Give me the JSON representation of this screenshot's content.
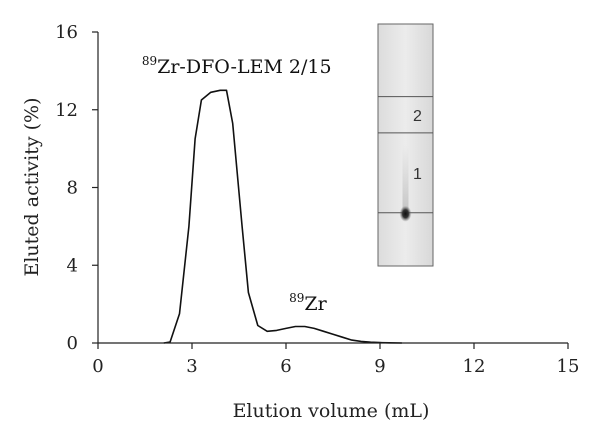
{
  "chart_data": {
    "type": "line",
    "xlabel": "Elution volume (mL)",
    "ylabel": "Eluted activity (%)",
    "xlim": [
      0,
      15
    ],
    "ylim": [
      0,
      16
    ],
    "x_ticks": [
      0,
      3,
      6,
      9,
      12,
      15
    ],
    "y_ticks": [
      0,
      4,
      8,
      12,
      16
    ],
    "grid": false,
    "series": [
      {
        "x": [
          2.1,
          2.3,
          2.6,
          2.9,
          3.1,
          3.3,
          3.6,
          3.9,
          4.1,
          4.3,
          4.6,
          4.8,
          5.1,
          5.4,
          5.7,
          6.0,
          6.3,
          6.6,
          6.9,
          7.2,
          7.5,
          7.8,
          8.1,
          8.4,
          8.7,
          9.0,
          9.3,
          9.7
        ],
        "y": [
          0.0,
          0.05,
          1.5,
          6.0,
          10.5,
          12.5,
          12.9,
          13.0,
          13.0,
          11.3,
          6.0,
          2.6,
          0.9,
          0.6,
          0.65,
          0.75,
          0.85,
          0.85,
          0.75,
          0.6,
          0.45,
          0.3,
          0.15,
          0.08,
          0.04,
          0.02,
          0.01,
          0.0
        ]
      }
    ],
    "annotations": [
      {
        "sup": "89",
        "text": "Zr-DFO-LEM 2/15",
        "x": 1.4,
        "y": 13.9
      },
      {
        "sup": "89",
        "text": "Zr",
        "x": 6.1,
        "y": 1.7
      }
    ]
  },
  "inset": {
    "lane_labels": [
      "2",
      "1"
    ],
    "rf_lines": [
      0.7,
      0.55,
      0.22
    ],
    "spot_rf": 0.22
  }
}
